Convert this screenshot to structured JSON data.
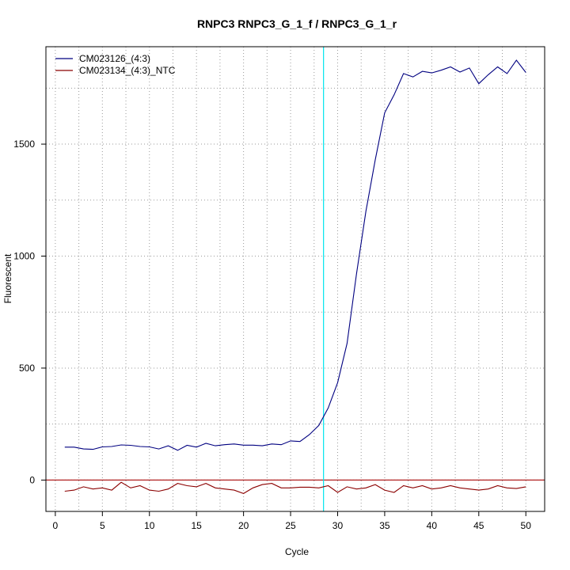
{
  "chart_data": {
    "type": "line",
    "title": "RNPC3  RNPC3_G_1_f / RNPC3_G_1_r",
    "xlabel": "Cycle",
    "ylabel": "Fluorescent",
    "xlim": [
      -1,
      52
    ],
    "ylim": [
      -140,
      1935
    ],
    "x_ticks": [
      0,
      5,
      10,
      15,
      20,
      25,
      30,
      35,
      40,
      45,
      50
    ],
    "y_ticks": [
      0,
      500,
      1000,
      1500
    ],
    "x_minor_grid": [
      2.5,
      7.5,
      12.5,
      17.5,
      22.5,
      27.5,
      32.5,
      37.5,
      42.5,
      47.5
    ],
    "y_minor_grid": [
      -250,
      250,
      750,
      1250,
      1750
    ],
    "grid": "dotted",
    "threshold_cycle": 28.5,
    "threshold_color": "#00e5ee",
    "baseline_color": "#b22222",
    "legend_position": "top-left",
    "x": [
      1,
      2,
      3,
      4,
      5,
      6,
      7,
      8,
      9,
      10,
      11,
      12,
      13,
      14,
      15,
      16,
      17,
      18,
      19,
      20,
      21,
      22,
      23,
      24,
      25,
      26,
      27,
      28,
      29,
      30,
      31,
      32,
      33,
      34,
      35,
      36,
      37,
      38,
      39,
      40,
      41,
      42,
      43,
      44,
      45,
      46,
      47,
      48,
      49,
      50
    ],
    "series": [
      {
        "name": "CM023126_(4:3)",
        "color": "#000080",
        "values": [
          147,
          147,
          139,
          137,
          148,
          150,
          157,
          155,
          150,
          148,
          139,
          153,
          133,
          155,
          147,
          164,
          153,
          158,
          161,
          156,
          156,
          153,
          161,
          158,
          175,
          172,
          203,
          244,
          322,
          435,
          610,
          920,
          1200,
          1430,
          1640,
          1720,
          1815,
          1800,
          1825,
          1818,
          1830,
          1845,
          1822,
          1840,
          1770,
          1810,
          1845,
          1815,
          1875,
          1820
        ]
      },
      {
        "name": "CM023134_(4:3)_NTC",
        "color": "#8b0000",
        "values": [
          -50,
          -45,
          -30,
          -40,
          -35,
          -45,
          -10,
          -35,
          -25,
          -45,
          -50,
          -40,
          -15,
          -25,
          -30,
          -15,
          -35,
          -40,
          -45,
          -60,
          -35,
          -20,
          -15,
          -35,
          -35,
          -32,
          -32,
          -35,
          -25,
          -55,
          -30,
          -40,
          -35,
          -20,
          -45,
          -55,
          -25,
          -35,
          -25,
          -40,
          -35,
          -25,
          -35,
          -40,
          -45,
          -40,
          -25,
          -35,
          -38,
          -30
        ]
      }
    ]
  }
}
